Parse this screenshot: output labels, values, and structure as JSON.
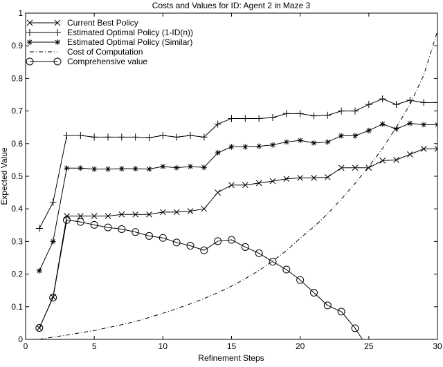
{
  "chart_data": {
    "type": "line",
    "title": "Costs and Values for ID: Agent 2 in Maze 3",
    "xlabel": "Refinement Steps",
    "ylabel": "Expected Value",
    "xlim": [
      0,
      30
    ],
    "ylim": [
      0,
      1
    ],
    "xticks": [
      "0",
      "5",
      "10",
      "15",
      "20",
      "25",
      "30"
    ],
    "yticks": [
      "0",
      "0.1",
      "0.2",
      "0.3",
      "0.4",
      "0.5",
      "0.6",
      "0.7",
      "0.8",
      "0.9",
      "1"
    ],
    "grid": false,
    "legend_position": "top-left",
    "x": [
      1,
      2,
      3,
      4,
      5,
      6,
      7,
      8,
      9,
      10,
      11,
      12,
      13,
      14,
      15,
      16,
      17,
      18,
      19,
      20,
      21,
      22,
      23,
      24,
      25,
      26,
      27,
      28,
      29,
      30
    ],
    "series": [
      {
        "name": "Current Best Policy",
        "marker": "x",
        "style": "solid",
        "values": [
          0.035,
          0.13,
          0.378,
          0.378,
          0.378,
          0.378,
          0.383,
          0.383,
          0.383,
          0.39,
          0.39,
          0.393,
          0.4,
          0.45,
          0.473,
          0.473,
          0.479,
          0.485,
          0.492,
          0.495,
          0.495,
          0.497,
          0.526,
          0.526,
          0.526,
          0.548,
          0.55,
          0.567,
          0.584,
          0.584
        ]
      },
      {
        "name": "Estimated Optimal Policy (1-ID(n))",
        "marker": "plus",
        "style": "solid",
        "values": [
          0.34,
          0.42,
          0.625,
          0.625,
          0.62,
          0.62,
          0.62,
          0.62,
          0.618,
          0.625,
          0.62,
          0.625,
          0.62,
          0.66,
          0.677,
          0.677,
          0.677,
          0.68,
          0.692,
          0.692,
          0.685,
          0.687,
          0.7,
          0.7,
          0.72,
          0.737,
          0.72,
          0.733,
          0.726,
          0.726
        ]
      },
      {
        "name": "Estimated Optimal Policy (Similar)",
        "marker": "star",
        "style": "solid",
        "values": [
          0.21,
          0.3,
          0.525,
          0.525,
          0.522,
          0.522,
          0.523,
          0.523,
          0.522,
          0.53,
          0.526,
          0.53,
          0.527,
          0.572,
          0.59,
          0.59,
          0.592,
          0.596,
          0.605,
          0.61,
          0.602,
          0.605,
          0.624,
          0.624,
          0.64,
          0.66,
          0.645,
          0.662,
          0.658,
          0.658
        ]
      },
      {
        "name": "Cost of Computation",
        "marker": "none",
        "style": "dashdot",
        "values": [
          0.0,
          0.007,
          0.013,
          0.02,
          0.027,
          0.036,
          0.045,
          0.055,
          0.067,
          0.08,
          0.094,
          0.109,
          0.125,
          0.143,
          0.163,
          0.186,
          0.211,
          0.24,
          0.272,
          0.31,
          0.345,
          0.385,
          0.43,
          0.478,
          0.53,
          0.585,
          0.65,
          0.72,
          0.81,
          0.945
        ]
      },
      {
        "name": "Comprehensive value",
        "marker": "circle",
        "style": "solid",
        "values": [
          0.035,
          0.128,
          0.366,
          0.36,
          0.351,
          0.343,
          0.338,
          0.329,
          0.317,
          0.311,
          0.297,
          0.287,
          0.273,
          0.301,
          0.305,
          0.283,
          0.264,
          0.238,
          0.214,
          0.182,
          0.143,
          0.104,
          0.085,
          0.034,
          -0.03,
          null,
          null,
          null,
          null,
          null
        ]
      }
    ]
  }
}
